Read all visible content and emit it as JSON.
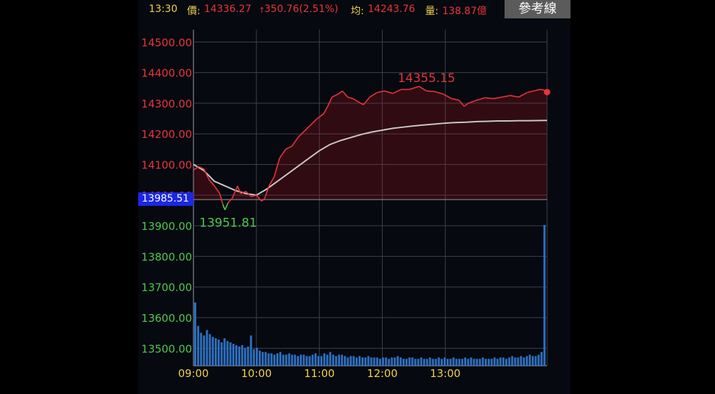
{
  "header": {
    "time": "13:30",
    "price_label": "價:",
    "price_value": "14336.27",
    "change_arrow": "↑",
    "change_value": "350.76(2.51%)",
    "avg_label": "均:",
    "avg_value": "14243.76",
    "volume_label": "量:",
    "volume_value": "138.87億",
    "reference_button": "參考線"
  },
  "chart_data": {
    "type": "line",
    "x_ticks": [
      "09:00",
      "10:00",
      "11:00",
      "12:00",
      "13:00"
    ],
    "y_ticks_up": [
      "14500.00",
      "14400.00",
      "14300.00",
      "14200.00",
      "14100.00",
      "14000.00"
    ],
    "y_ticks_down": [
      "13900.00",
      "13800.00",
      "13700.00",
      "13600.00",
      "13500.00"
    ],
    "ylim": [
      13443,
      14540
    ],
    "reference_value": 13985.51,
    "reference_label": "13985.51",
    "high_label": "14355.15",
    "low_label": "13951.81",
    "colors": {
      "price": "#e8353a",
      "average": "#c8c8c8",
      "down": "#4ec94e",
      "volume": "#2d6fbf",
      "reference_badge": "#1b27e6"
    },
    "price_series": [
      [
        0,
        14082
      ],
      [
        5,
        14093
      ],
      [
        10,
        14085
      ],
      [
        15,
        14050
      ],
      [
        20,
        14030
      ],
      [
        25,
        14005
      ],
      [
        28,
        13970
      ],
      [
        30,
        13951.81
      ],
      [
        33,
        13975
      ],
      [
        37,
        13990
      ],
      [
        42,
        14030
      ],
      [
        45,
        14005
      ],
      [
        50,
        14012
      ],
      [
        55,
        13995
      ],
      [
        60,
        14000
      ],
      [
        65,
        13980
      ],
      [
        68,
        13990
      ],
      [
        72,
        14030
      ],
      [
        77,
        14060
      ],
      [
        82,
        14120
      ],
      [
        88,
        14150
      ],
      [
        94,
        14160
      ],
      [
        100,
        14190
      ],
      [
        106,
        14210
      ],
      [
        112,
        14230
      ],
      [
        118,
        14250
      ],
      [
        124,
        14265
      ],
      [
        128,
        14290
      ],
      [
        132,
        14320
      ],
      [
        138,
        14330
      ],
      [
        142,
        14340
      ],
      [
        147,
        14320
      ],
      [
        152,
        14315
      ],
      [
        157,
        14305
      ],
      [
        162,
        14295
      ],
      [
        168,
        14320
      ],
      [
        175,
        14335
      ],
      [
        182,
        14340
      ],
      [
        190,
        14332
      ],
      [
        198,
        14345
      ],
      [
        206,
        14345
      ],
      [
        215,
        14355.15
      ],
      [
        222,
        14340
      ],
      [
        230,
        14338
      ],
      [
        238,
        14330
      ],
      [
        246,
        14315
      ],
      [
        253,
        14310
      ],
      [
        258,
        14290
      ],
      [
        262,
        14300
      ],
      [
        270,
        14310
      ],
      [
        278,
        14318
      ],
      [
        286,
        14315
      ],
      [
        294,
        14320
      ],
      [
        302,
        14325
      ],
      [
        310,
        14320
      ],
      [
        318,
        14335
      ],
      [
        324,
        14340
      ],
      [
        330,
        14345
      ],
      [
        334,
        14343
      ],
      [
        337,
        14336.27
      ]
    ],
    "average_series": [
      [
        0,
        14100
      ],
      [
        10,
        14080
      ],
      [
        20,
        14045
      ],
      [
        30,
        14030
      ],
      [
        40,
        14015
      ],
      [
        50,
        14005
      ],
      [
        60,
        14000
      ],
      [
        70,
        14020
      ],
      [
        80,
        14045
      ],
      [
        90,
        14070
      ],
      [
        100,
        14095
      ],
      [
        110,
        14120
      ],
      [
        120,
        14145
      ],
      [
        130,
        14165
      ],
      [
        140,
        14178
      ],
      [
        150,
        14188
      ],
      [
        160,
        14198
      ],
      [
        170,
        14206
      ],
      [
        180,
        14212
      ],
      [
        190,
        14218
      ],
      [
        200,
        14222
      ],
      [
        210,
        14226
      ],
      [
        220,
        14229
      ],
      [
        230,
        14232
      ],
      [
        240,
        14235
      ],
      [
        250,
        14237
      ],
      [
        260,
        14238
      ],
      [
        270,
        14240
      ],
      [
        280,
        14241
      ],
      [
        290,
        14242
      ],
      [
        300,
        14242
      ],
      [
        310,
        14243
      ],
      [
        320,
        14243
      ],
      [
        337,
        14243.76
      ]
    ],
    "volume_series": [
      92,
      58,
      48,
      44,
      52,
      46,
      42,
      40,
      38,
      34,
      40,
      36,
      34,
      32,
      30,
      28,
      30,
      26,
      28,
      44,
      24,
      26,
      22,
      20,
      20,
      18,
      18,
      16,
      18,
      20,
      16,
      16,
      18,
      16,
      16,
      14,
      16,
      16,
      14,
      14,
      16,
      18,
      14,
      14,
      18,
      16,
      20,
      16,
      14,
      16,
      16,
      14,
      12,
      14,
      14,
      12,
      14,
      12,
      12,
      14,
      12,
      12,
      12,
      10,
      12,
      12,
      10,
      12,
      12,
      14,
      12,
      10,
      10,
      12,
      12,
      10,
      10,
      12,
      10,
      10,
      12,
      10,
      10,
      12,
      10,
      12,
      10,
      10,
      12,
      10,
      10,
      10,
      12,
      10,
      12,
      10,
      10,
      10,
      12,
      10,
      10,
      10,
      12,
      10,
      12,
      12,
      10,
      12,
      14,
      12,
      12,
      14,
      12,
      14,
      16,
      14,
      14,
      16,
      20,
      205
    ],
    "volume_max": 205
  }
}
